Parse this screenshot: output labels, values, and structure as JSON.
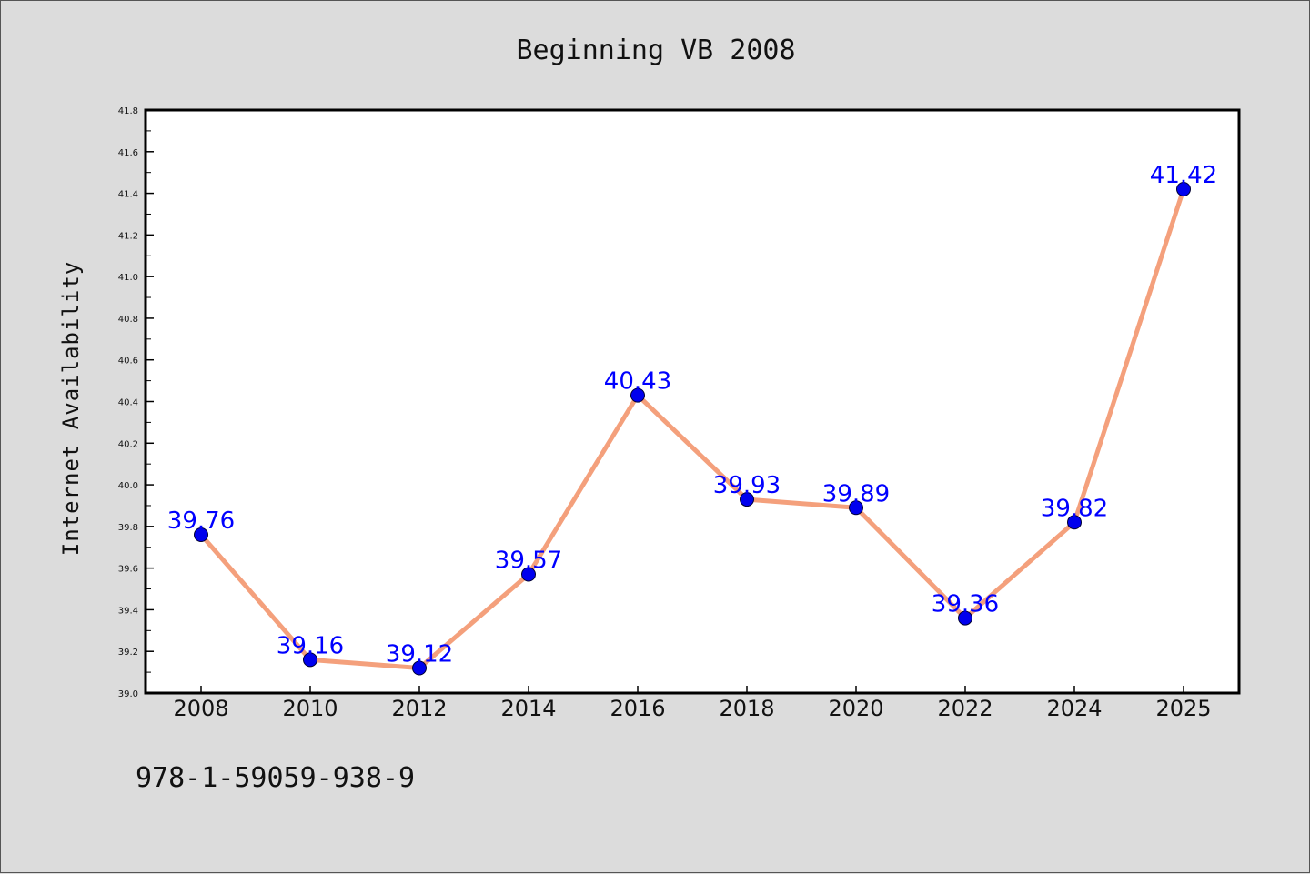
{
  "chart_data": {
    "type": "line",
    "title": "Beginning VB 2008",
    "xlabel": "",
    "ylabel": "Internet Availability",
    "categories": [
      "2008",
      "2010",
      "2012",
      "2014",
      "2016",
      "2018",
      "2020",
      "2022",
      "2024",
      "2025"
    ],
    "series": [
      {
        "values": [
          39.76,
          39.16,
          39.12,
          39.57,
          40.43,
          39.93,
          39.89,
          39.36,
          39.82,
          41.42
        ],
        "line_color": "#f4a07c",
        "marker_color": "#0000ee",
        "label_color": "#0000ff"
      }
    ],
    "data_labels": [
      "39.76",
      "39.16",
      "39.12",
      "39.57",
      "40.43",
      "39.93",
      "39.89",
      "39.36",
      "39.82",
      "41.42"
    ],
    "ylim": [
      39.0,
      41.8
    ],
    "yticks": [
      "39.0",
      "39.2",
      "39.4",
      "39.6",
      "39.8",
      "40.0",
      "40.2",
      "40.4",
      "40.6",
      "40.8",
      "41.0",
      "41.2",
      "41.4",
      "41.6",
      "41.8"
    ],
    "grid": false,
    "legend": "none"
  },
  "footnote": "978-1-59059-938-9",
  "colors": {
    "background": "#dcdcdc",
    "plot_background": "#ffffff",
    "axis": "#000000"
  }
}
